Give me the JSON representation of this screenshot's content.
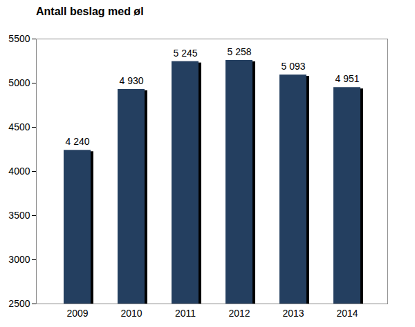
{
  "chart_data": {
    "type": "bar",
    "title": "Antall beslag med øl",
    "categories": [
      "2009",
      "2010",
      "2011",
      "2012",
      "2013",
      "2014"
    ],
    "values": [
      4240,
      4930,
      5245,
      5258,
      5093,
      4951
    ],
    "value_labels": [
      "4 240",
      "4 930",
      "5 245",
      "5 258",
      "5 093",
      "4 951"
    ],
    "color": "#243f60",
    "ylim": [
      2500,
      5500
    ],
    "yticks": [
      2500,
      3000,
      3500,
      4000,
      4500,
      5000,
      5500
    ],
    "grid": false,
    "data_labels": true
  }
}
